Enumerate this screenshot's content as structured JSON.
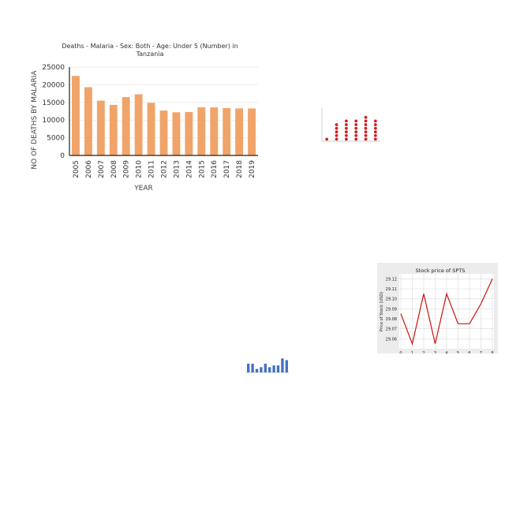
{
  "chart_data": [
    {
      "type": "bar",
      "title": "Deaths - Malaria - Sex: Both - Age: Under 5 (Number) in Tanzania",
      "title_lines": [
        "Deaths - Malaria - Sex: Both - Age: Under 5 (Number) in",
        "Tanzania"
      ],
      "xlabel": "YEAR",
      "ylabel": "NO OF DEATHS BY MALARIA",
      "categories": [
        "2005",
        "2006",
        "2007",
        "2008",
        "2009",
        "2010",
        "2011",
        "2012",
        "2013",
        "2014",
        "2015",
        "2016",
        "2017",
        "2018",
        "2019"
      ],
      "values": [
        22500,
        19300,
        15500,
        14300,
        16500,
        17300,
        14900,
        12700,
        12200,
        12300,
        13600,
        13600,
        13400,
        13300,
        13300
      ],
      "yticks": [
        0,
        5000,
        10000,
        15000,
        20000,
        25000
      ],
      "ylim": [
        0,
        25000
      ],
      "grid": true,
      "color": "#f0a469"
    },
    {
      "type": "scatter",
      "categories": [
        "",
        "",
        "",
        "",
        "",
        ""
      ],
      "series_counts": [
        1,
        5,
        6,
        6,
        7,
        6
      ],
      "color": "#cc2222"
    },
    {
      "type": "line",
      "title": "Stock price of SPTS",
      "ylabel": "Price of Stock (USD)",
      "x": [
        0,
        1,
        2,
        3,
        4,
        5,
        6,
        7,
        8
      ],
      "y": [
        29.085,
        29.055,
        29.105,
        29.055,
        29.105,
        29.075,
        29.075,
        29.095,
        29.12
      ],
      "yticks": [
        29.06,
        29.07,
        29.08,
        29.09,
        29.1,
        29.11,
        29.12
      ],
      "ytick_labels": [
        "29.06",
        "29.07",
        "29.08",
        "29.09",
        "29.10",
        "29.11",
        "29.12"
      ],
      "ylim": [
        29.05,
        29.125
      ],
      "xlim": [
        0,
        8
      ],
      "grid": true,
      "color": "#cc1111"
    },
    {
      "type": "bar",
      "values": [
        5,
        5,
        2,
        3,
        5,
        3,
        4,
        4,
        8,
        7
      ],
      "ylim": [
        0,
        9
      ],
      "color": "#4472c4"
    }
  ]
}
